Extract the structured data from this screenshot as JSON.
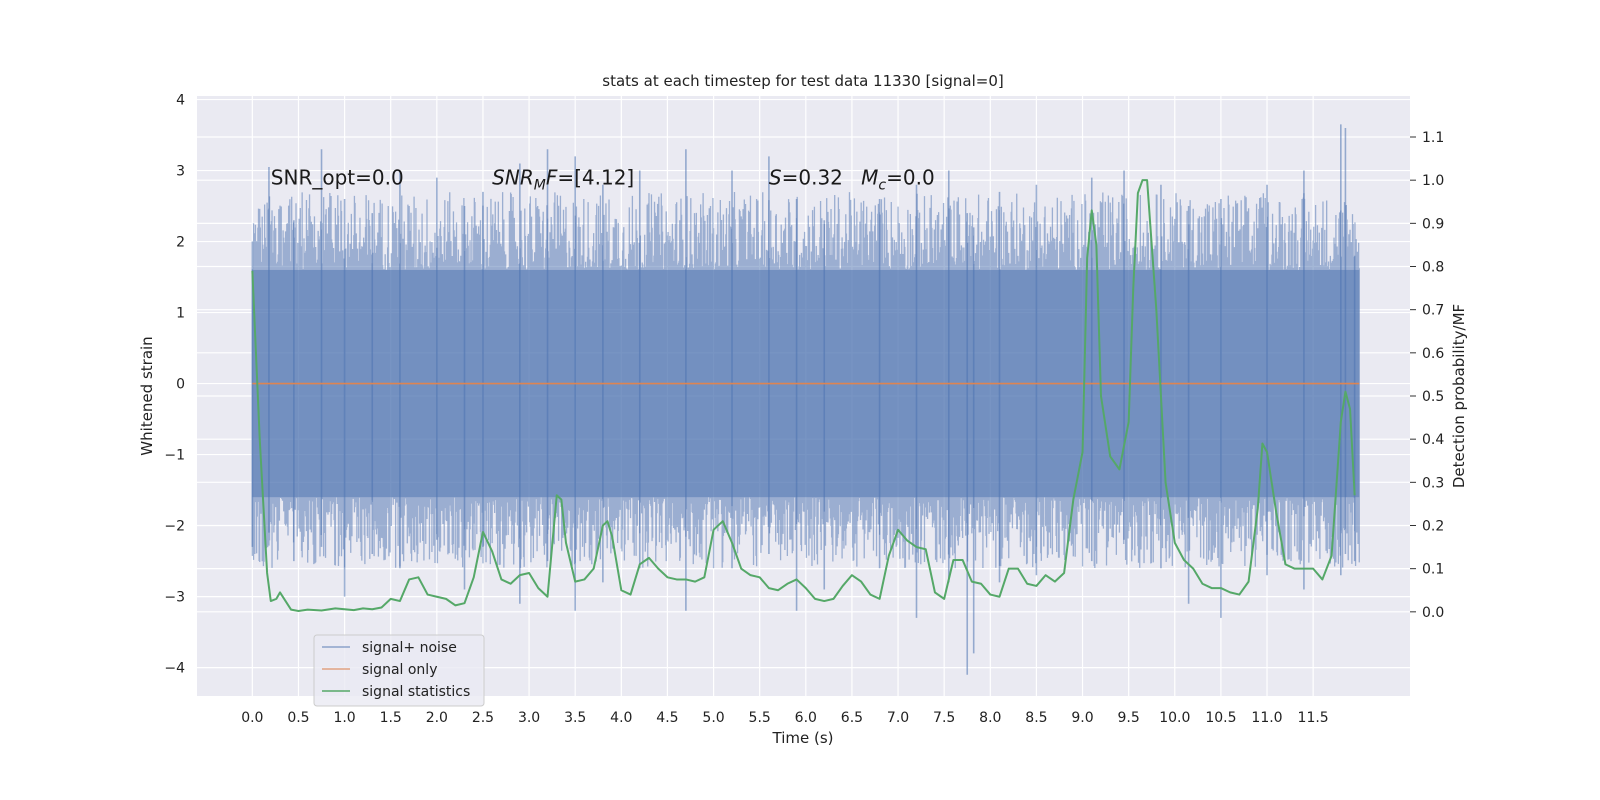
{
  "chart_data": {
    "type": "line",
    "title": "stats at each timestep for test data 11330 [signal=0]",
    "xlabel": "Time (s)",
    "ylabel": "Whitened strain",
    "y2label": "Detection probability/MF",
    "xlim": [
      -0.6,
      12.55
    ],
    "ylim": [
      -4.4,
      4.05
    ],
    "y2lim": [
      -0.195,
      1.195
    ],
    "x_ticks": [
      "0.0",
      "0.5",
      "1.0",
      "1.5",
      "2.0",
      "2.5",
      "3.0",
      "3.5",
      "4.0",
      "4.5",
      "5.0",
      "5.5",
      "6.0",
      "6.5",
      "7.0",
      "7.5",
      "8.0",
      "8.5",
      "9.0",
      "9.5",
      "10.0",
      "10.5",
      "11.0",
      "11.5"
    ],
    "y_ticks": [
      "4",
      "3",
      "2",
      "1",
      "0",
      "−1",
      "−2",
      "−3",
      "−4"
    ],
    "y2_ticks": [
      "1.1",
      "1.0",
      "0.9",
      "0.8",
      "0.7",
      "0.6",
      "0.5",
      "0.4",
      "0.3",
      "0.2",
      "0.1",
      "0.0"
    ],
    "grid": true,
    "legend_position": "lower-left",
    "annotations": [
      {
        "id": "snr-opt",
        "x": 0.2,
        "y": 2.9,
        "parts": [
          {
            "text": "SNR_opt=0.0"
          }
        ]
      },
      {
        "id": "snr-mf",
        "x": 2.6,
        "y": 2.9,
        "parts": [
          {
            "text": "SNR",
            "italic": true
          },
          {
            "text": "M",
            "italic": true,
            "sub": true
          },
          {
            "text": "F",
            "italic": true
          },
          {
            "text": "=[4.12]"
          }
        ]
      },
      {
        "id": "s-value",
        "x": 5.6,
        "y": 2.9,
        "parts": [
          {
            "text": "S",
            "italic": true
          },
          {
            "text": "=0.32"
          }
        ]
      },
      {
        "id": "mc-value",
        "x": 6.6,
        "y": 2.9,
        "parts": [
          {
            "text": "M",
            "italic": true
          },
          {
            "text": "c",
            "italic": true,
            "sub": true
          },
          {
            "text": "=0.0"
          }
        ]
      }
    ],
    "series": [
      {
        "name": "signal+ noise",
        "color": "#4c72b0",
        "opacity": 0.5,
        "axis": "left",
        "x_range": [
          0.0,
          12.0
        ],
        "typical_envelope": [
          -1.6,
          1.6
        ],
        "peaks": [
          {
            "x": 0.0,
            "hi": 2.0,
            "lo": -2.3
          },
          {
            "x": 0.18,
            "hi": 3.05,
            "lo": -2.1
          },
          {
            "x": 0.45,
            "hi": 2.3,
            "lo": -2.5
          },
          {
            "x": 0.75,
            "hi": 3.3,
            "lo": -2.3
          },
          {
            "x": 1.0,
            "hi": 2.6,
            "lo": -3.0
          },
          {
            "x": 1.3,
            "hi": 2.4,
            "lo": -2.4
          },
          {
            "x": 1.6,
            "hi": 3.0,
            "lo": -2.6
          },
          {
            "x": 2.0,
            "hi": 2.9,
            "lo": -2.2
          },
          {
            "x": 2.3,
            "hi": 2.5,
            "lo": -2.9
          },
          {
            "x": 2.5,
            "hi": 2.7,
            "lo": -2.3
          },
          {
            "x": 2.9,
            "hi": 3.1,
            "lo": -3.1
          },
          {
            "x": 3.2,
            "hi": 3.3,
            "lo": -2.5
          },
          {
            "x": 3.5,
            "hi": 3.2,
            "lo": -3.2
          },
          {
            "x": 3.8,
            "hi": 2.8,
            "lo": -2.8
          },
          {
            "x": 4.2,
            "hi": 3.0,
            "lo": -2.6
          },
          {
            "x": 4.7,
            "hi": 3.3,
            "lo": -3.2
          },
          {
            "x": 5.2,
            "hi": 3.0,
            "lo": -2.6
          },
          {
            "x": 5.6,
            "hi": 3.2,
            "lo": -2.4
          },
          {
            "x": 5.9,
            "hi": 2.6,
            "lo": -3.2
          },
          {
            "x": 6.2,
            "hi": 2.3,
            "lo": -2.9
          },
          {
            "x": 6.8,
            "hi": 2.6,
            "lo": -2.6
          },
          {
            "x": 7.2,
            "hi": 2.8,
            "lo": -3.3
          },
          {
            "x": 7.55,
            "hi": 3.0,
            "lo": -2.8
          },
          {
            "x": 7.75,
            "hi": 2.4,
            "lo": -4.1
          },
          {
            "x": 7.82,
            "hi": 2.2,
            "lo": -3.8
          },
          {
            "x": 8.1,
            "hi": 2.7,
            "lo": -2.8
          },
          {
            "x": 8.5,
            "hi": 2.8,
            "lo": -2.7
          },
          {
            "x": 9.1,
            "hi": 2.9,
            "lo": -2.5
          },
          {
            "x": 9.45,
            "hi": 3.0,
            "lo": -2.2
          },
          {
            "x": 9.85,
            "hi": 2.8,
            "lo": -2.6
          },
          {
            "x": 10.15,
            "hi": 2.5,
            "lo": -3.1
          },
          {
            "x": 10.5,
            "hi": 2.6,
            "lo": -3.3
          },
          {
            "x": 11.0,
            "hi": 2.8,
            "lo": -2.7
          },
          {
            "x": 11.4,
            "hi": 3.0,
            "lo": -2.9
          },
          {
            "x": 11.8,
            "hi": 3.65,
            "lo": -2.7
          },
          {
            "x": 11.85,
            "hi": 3.6,
            "lo": -2.4
          },
          {
            "x": 11.95,
            "hi": 1.8,
            "lo": -2.5
          }
        ]
      },
      {
        "name": "signal only",
        "color": "#dd8452",
        "axis": "left",
        "x": [
          0.0,
          12.0
        ],
        "y": [
          0.0,
          0.0
        ]
      },
      {
        "name": "signal statistics",
        "color": "#55a868",
        "axis": "right",
        "x": [
          0.0,
          0.08,
          0.16,
          0.2,
          0.26,
          0.3,
          0.36,
          0.42,
          0.5,
          0.6,
          0.75,
          0.9,
          1.0,
          1.1,
          1.2,
          1.3,
          1.4,
          1.5,
          1.6,
          1.7,
          1.8,
          1.85,
          1.9,
          2.0,
          2.1,
          2.2,
          2.3,
          2.4,
          2.5,
          2.6,
          2.7,
          2.8,
          2.9,
          3.0,
          3.1,
          3.2,
          3.3,
          3.35,
          3.4,
          3.5,
          3.6,
          3.7,
          3.8,
          3.85,
          3.9,
          4.0,
          4.1,
          4.2,
          4.3,
          4.4,
          4.5,
          4.6,
          4.7,
          4.8,
          4.9,
          5.0,
          5.1,
          5.2,
          5.3,
          5.4,
          5.5,
          5.6,
          5.7,
          5.8,
          5.9,
          6.0,
          6.1,
          6.2,
          6.3,
          6.4,
          6.5,
          6.6,
          6.7,
          6.8,
          6.9,
          7.0,
          7.1,
          7.2,
          7.3,
          7.4,
          7.5,
          7.6,
          7.7,
          7.8,
          7.9,
          8.0,
          8.1,
          8.2,
          8.3,
          8.4,
          8.5,
          8.6,
          8.7,
          8.8,
          8.9,
          9.0,
          9.05,
          9.1,
          9.15,
          9.2,
          9.3,
          9.4,
          9.5,
          9.55,
          9.6,
          9.65,
          9.7,
          9.8,
          9.9,
          10.0,
          10.1,
          10.2,
          10.3,
          10.4,
          10.5,
          10.6,
          10.7,
          10.8,
          10.9,
          10.95,
          11.0,
          11.1,
          11.2,
          11.3,
          11.4,
          11.5,
          11.6,
          11.7,
          11.8,
          11.85,
          11.9,
          11.95
        ],
        "y": [
          0.79,
          0.4,
          0.09,
          0.025,
          0.03,
          0.045,
          0.025,
          0.005,
          0.002,
          0.005,
          0.003,
          0.008,
          0.006,
          0.004,
          0.008,
          0.006,
          0.01,
          0.03,
          0.025,
          0.075,
          0.08,
          0.06,
          0.04,
          0.035,
          0.03,
          0.015,
          0.02,
          0.08,
          0.185,
          0.14,
          0.075,
          0.065,
          0.085,
          0.09,
          0.055,
          0.035,
          0.27,
          0.26,
          0.16,
          0.07,
          0.075,
          0.1,
          0.2,
          0.21,
          0.175,
          0.05,
          0.04,
          0.11,
          0.125,
          0.1,
          0.08,
          0.075,
          0.075,
          0.07,
          0.08,
          0.19,
          0.21,
          0.16,
          0.1,
          0.085,
          0.08,
          0.055,
          0.05,
          0.065,
          0.075,
          0.055,
          0.03,
          0.025,
          0.03,
          0.06,
          0.085,
          0.07,
          0.04,
          0.03,
          0.13,
          0.19,
          0.165,
          0.15,
          0.145,
          0.045,
          0.03,
          0.12,
          0.12,
          0.07,
          0.065,
          0.04,
          0.035,
          0.1,
          0.1,
          0.065,
          0.06,
          0.085,
          0.07,
          0.09,
          0.26,
          0.37,
          0.82,
          0.93,
          0.85,
          0.5,
          0.36,
          0.33,
          0.44,
          0.75,
          0.97,
          1.0,
          1.0,
          0.7,
          0.3,
          0.16,
          0.12,
          0.1,
          0.065,
          0.055,
          0.055,
          0.045,
          0.04,
          0.07,
          0.24,
          0.39,
          0.37,
          0.23,
          0.11,
          0.1,
          0.1,
          0.1,
          0.075,
          0.13,
          0.44,
          0.51,
          0.47,
          0.27
        ]
      }
    ]
  }
}
